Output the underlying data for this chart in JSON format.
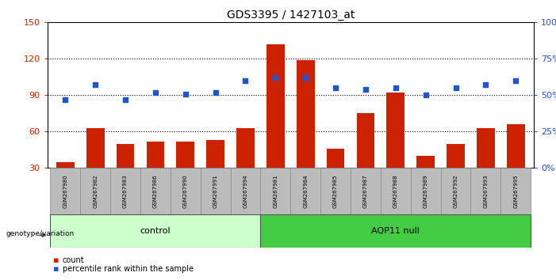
{
  "title": "GDS3395 / 1427103_at",
  "samples": [
    "GSM267980",
    "GSM267982",
    "GSM267983",
    "GSM267986",
    "GSM267990",
    "GSM267991",
    "GSM267994",
    "GSM267981",
    "GSM267984",
    "GSM267985",
    "GSM267987",
    "GSM267988",
    "GSM267989",
    "GSM267992",
    "GSM267993",
    "GSM267995"
  ],
  "counts": [
    35,
    63,
    50,
    52,
    52,
    53,
    63,
    132,
    119,
    46,
    75,
    92,
    40,
    50,
    63,
    66
  ],
  "percentiles": [
    47,
    57,
    47,
    52,
    51,
    52,
    60,
    62,
    62,
    55,
    54,
    55,
    50,
    55,
    57,
    60
  ],
  "control_count": 7,
  "groups": [
    "control",
    "AQP11 null"
  ],
  "ylim_left": [
    30,
    150
  ],
  "ylim_right": [
    0,
    100
  ],
  "left_yticks": [
    30,
    60,
    90,
    120,
    150
  ],
  "right_yticks": [
    0,
    25,
    50,
    75,
    100
  ],
  "bar_color": "#cc2200",
  "dot_color": "#2255cc",
  "bg_color": "#ffffff",
  "tick_color_left": "#cc2200",
  "tick_color_right": "#2255cc",
  "control_bg": "#ccffcc",
  "aqp11_bg": "#44cc44",
  "sample_bg": "#bbbbbb",
  "bar_width": 0.6
}
